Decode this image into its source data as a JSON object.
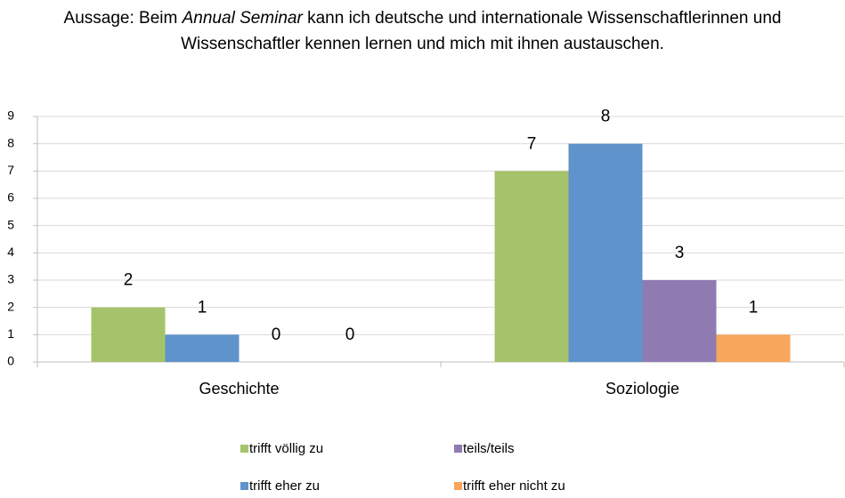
{
  "chart_data": {
    "type": "bar",
    "title": [
      "Aussage: Beim ",
      "Annual Seminar",
      " kann ich deutsche und internationale Wissenschaftlerinnen und Wissenschaftler kennen lernen und mich mit ihnen austauschen."
    ],
    "categories": [
      "Geschichte",
      "Soziologie"
    ],
    "series": [
      {
        "name": "trifft völlig zu",
        "color": "#a5c36a",
        "values": [
          2,
          7
        ]
      },
      {
        "name": "trifft eher zu",
        "color": "#5f93cb",
        "values": [
          1,
          8
        ]
      },
      {
        "name": "teils/teils",
        "color": "#8f7bb2",
        "values": [
          0,
          3
        ]
      },
      {
        "name": "trifft eher nicht zu",
        "color": "#f8a65b",
        "values": [
          0,
          1
        ]
      }
    ],
    "ylim": [
      0,
      9
    ],
    "yticks": [
      0,
      1,
      2,
      3,
      4,
      5,
      6,
      7,
      8,
      9
    ],
    "grid": true,
    "legend": "bottom"
  }
}
